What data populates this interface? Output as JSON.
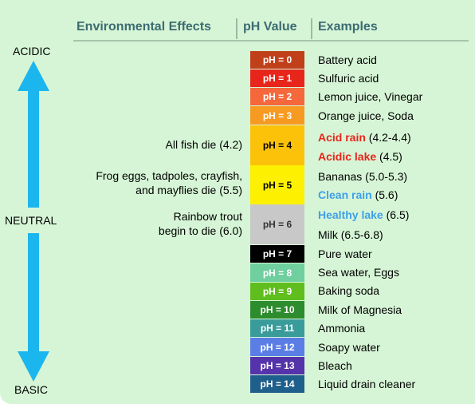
{
  "header": {
    "environmental_effects": "Environmental Effects",
    "ph_value": "pH Value",
    "examples": "Examples"
  },
  "axis": {
    "acidic": "ACIDIC",
    "neutral": "NEUTRAL",
    "basic": "BASIC",
    "arrow_color": "#1cb6ee"
  },
  "ph_scale": [
    {
      "label": "pH = 0",
      "color": "#c0401a"
    },
    {
      "label": "pH = 1",
      "color": "#e8251b"
    },
    {
      "label": "pH = 2",
      "color": "#f4683c"
    },
    {
      "label": "pH = 3",
      "color": "#f79a22"
    },
    {
      "label": "pH = 4",
      "color": "#fcc20a"
    },
    {
      "label": "pH = 5",
      "color": "#fdf000"
    },
    {
      "label": "pH = 6",
      "color": "#c8c8c8"
    },
    {
      "label": "pH = 7",
      "color": "#000000"
    },
    {
      "label": "pH = 8",
      "color": "#6fcf9f"
    },
    {
      "label": "pH = 9",
      "color": "#5fbe1e"
    },
    {
      "label": "pH = 10",
      "color": "#2d8c2d"
    },
    {
      "label": "pH = 11",
      "color": "#3a9b9b"
    },
    {
      "label": "pH = 12",
      "color": "#5b7ee6"
    },
    {
      "label": "pH = 13",
      "color": "#5533aa"
    },
    {
      "label": "pH = 14",
      "color": "#1f5f8b"
    }
  ],
  "environmental_effects": {
    "fish": "All fish die (4.2)",
    "frog_line1": "Frog eggs, tadpoles, crayfish,",
    "frog_line2": "and mayflies die (5.5)",
    "trout_line1": "Rainbow trout",
    "trout_line2": "begin to die (6.0)"
  },
  "examples": {
    "battery_acid": "Battery acid",
    "sulfuric_acid": "Sulfuric acid",
    "lemon": "Lemon juice, Vinegar",
    "orange": "Orange juice, Soda",
    "acid_rain": "Acid rain",
    "acid_rain_range": "(4.2-4.4)",
    "acidic_lake": "Acidic lake",
    "acidic_lake_range": "(4.5)",
    "bananas": "Bananas (5.0-5.3)",
    "clean_rain": "Clean rain",
    "clean_rain_value": "(5.6)",
    "healthy_lake": "Healthy lake",
    "healthy_lake_value": "(6.5)",
    "milk": "Milk (6.5-6.8)",
    "pure_water": "Pure water",
    "sea_water": "Sea water, Eggs",
    "baking_soda": "Baking soda",
    "milk_of_magnesia": "Milk of Magnesia",
    "ammonia": "Ammonia",
    "soapy_water": "Soapy water",
    "bleach": "Bleach",
    "drain_cleaner": "Liquid drain cleaner"
  },
  "colors": {
    "header_text": "#3d6b73",
    "background": "#d6f5d6",
    "highlight_red": "#e8251b",
    "highlight_blue": "#3fa0e8"
  }
}
